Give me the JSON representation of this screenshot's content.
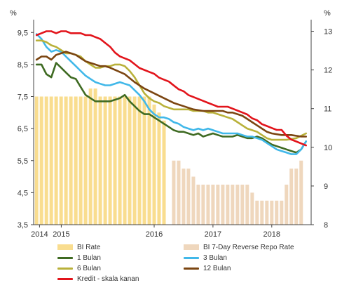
{
  "chart_data": {
    "type": "bar+line",
    "left_axis": {
      "unit": "%",
      "ylim": [
        3.5,
        9.9
      ],
      "ticks": [
        "3,5",
        "4,5",
        "5,5",
        "6,5",
        "7,5",
        "8,5",
        "9,5"
      ],
      "tick_values": [
        3.5,
        4.5,
        5.5,
        6.5,
        7.5,
        8.5,
        9.5
      ]
    },
    "right_axis": {
      "unit": "%",
      "ylim": [
        8,
        13.3
      ],
      "ticks": [
        "8",
        "9",
        "10",
        "11",
        "12",
        "13"
      ],
      "tick_values": [
        8,
        9,
        10,
        11,
        12,
        13
      ]
    },
    "x_axis": {
      "ticks": [
        "2014",
        "2015",
        "2016",
        "2017",
        "2018"
      ],
      "tick_values": [
        2014.05,
        2014.42,
        2016.0,
        2017.0,
        2018.0
      ]
    },
    "colors": {
      "bi_rate": "#f9dd8f",
      "bi_7day": "#efd7bd",
      "bulan_1": "#3f6b23",
      "bulan_3": "#41b8e9",
      "bulan_6": "#b9b13a",
      "bulan_12": "#7b4511",
      "kredit": "#e2141b"
    },
    "legend": [
      {
        "key": "bi_rate",
        "label": "BI Rate",
        "kind": "bar"
      },
      {
        "key": "bi_7day",
        "label": "BI 7-Day Reverse Repo Rate",
        "kind": "bar"
      },
      {
        "key": "bulan_1",
        "label": "1 Bulan",
        "kind": "line"
      },
      {
        "key": "bulan_3",
        "label": "3 Bulan",
        "kind": "line"
      },
      {
        "key": "bulan_6",
        "label": "6 Bulan",
        "kind": "line"
      },
      {
        "key": "bulan_12",
        "label": "12 Bulan",
        "kind": "line"
      },
      {
        "key": "kredit",
        "label": "Kredit - skala kanan",
        "kind": "line"
      }
    ],
    "bars_bi_rate": {
      "x": [
        2014.0,
        2014.083,
        2014.167,
        2014.25,
        2014.333,
        2014.417,
        2014.5,
        2014.583,
        2014.667,
        2014.75,
        2014.833,
        2014.917,
        2015.0,
        2015.083,
        2015.167,
        2015.25,
        2015.333,
        2015.417,
        2015.5,
        2015.583,
        2015.667,
        2015.75,
        2015.833,
        2015.917,
        2016.0,
        2016.083,
        2016.167
      ],
      "values": [
        7.5,
        7.5,
        7.5,
        7.5,
        7.5,
        7.5,
        7.5,
        7.5,
        7.5,
        7.5,
        7.5,
        7.75,
        7.75,
        7.5,
        7.5,
        7.5,
        7.5,
        7.5,
        7.5,
        7.5,
        7.5,
        7.5,
        7.5,
        7.5,
        7.25,
        7.0,
        6.75
      ]
    },
    "bars_bi_7day": {
      "x": [
        2016.333,
        2016.417,
        2016.5,
        2016.583,
        2016.667,
        2016.75,
        2016.833,
        2016.917,
        2017.0,
        2017.083,
        2017.167,
        2017.25,
        2017.333,
        2017.417,
        2017.5,
        2017.583,
        2017.667,
        2017.75,
        2017.833,
        2017.917,
        2018.0,
        2018.083,
        2018.167,
        2018.25,
        2018.333,
        2018.417,
        2018.5
      ],
      "values": [
        5.5,
        5.5,
        5.25,
        5.25,
        5.0,
        4.75,
        4.75,
        4.75,
        4.75,
        4.75,
        4.75,
        4.75,
        4.75,
        4.75,
        4.75,
        4.75,
        4.5,
        4.25,
        4.25,
        4.25,
        4.25,
        4.25,
        4.25,
        4.75,
        5.25,
        5.25,
        5.5
      ]
    },
    "lines": {
      "x": [
        2014.0,
        2014.083,
        2014.167,
        2014.25,
        2014.333,
        2014.417,
        2014.5,
        2014.583,
        2014.667,
        2014.75,
        2014.833,
        2014.917,
        2015.0,
        2015.083,
        2015.167,
        2015.25,
        2015.333,
        2015.417,
        2015.5,
        2015.583,
        2015.667,
        2015.75,
        2015.833,
        2015.917,
        2016.0,
        2016.083,
        2016.167,
        2016.25,
        2016.333,
        2016.417,
        2016.5,
        2016.583,
        2016.667,
        2016.75,
        2016.833,
        2016.917,
        2017.0,
        2017.083,
        2017.167,
        2017.25,
        2017.333,
        2017.417,
        2017.5,
        2017.583,
        2017.667,
        2017.75,
        2017.833,
        2017.917,
        2018.0,
        2018.083,
        2018.167,
        2018.25,
        2018.333,
        2018.417,
        2018.5,
        2018.583
      ],
      "bulan_1": [
        8.5,
        8.5,
        8.2,
        8.1,
        8.55,
        8.4,
        8.25,
        8.1,
        8.05,
        7.8,
        7.55,
        7.45,
        7.35,
        7.35,
        7.35,
        7.35,
        7.4,
        7.45,
        7.55,
        7.35,
        7.2,
        7.05,
        6.95,
        6.95,
        6.85,
        6.75,
        6.65,
        6.55,
        6.45,
        6.4,
        6.4,
        6.35,
        6.3,
        6.35,
        6.25,
        6.3,
        6.35,
        6.3,
        6.25,
        6.25,
        6.25,
        6.3,
        6.25,
        6.2,
        6.2,
        6.25,
        6.2,
        6.1,
        6.0,
        5.95,
        5.9,
        5.85,
        5.8,
        5.75,
        5.85,
        6.1
      ],
      "bulan_3": [
        9.45,
        9.3,
        9.05,
        8.9,
        8.95,
        8.9,
        8.75,
        8.6,
        8.45,
        8.3,
        8.15,
        8.05,
        7.95,
        7.9,
        7.85,
        7.85,
        7.9,
        7.95,
        7.9,
        7.85,
        7.7,
        7.55,
        7.35,
        7.1,
        6.95,
        6.85,
        6.85,
        6.8,
        6.7,
        6.65,
        6.55,
        6.5,
        6.45,
        6.5,
        6.45,
        6.5,
        6.45,
        6.4,
        6.35,
        6.35,
        6.35,
        6.35,
        6.3,
        6.25,
        6.25,
        6.2,
        6.15,
        6.05,
        5.95,
        5.85,
        5.8,
        5.75,
        5.7,
        5.7,
        5.85,
        6.1
      ],
      "bulan_6": [
        9.25,
        9.25,
        9.2,
        9.1,
        9.05,
        8.95,
        8.85,
        8.85,
        8.8,
        8.75,
        8.6,
        8.5,
        8.4,
        8.4,
        8.45,
        8.45,
        8.5,
        8.5,
        8.45,
        8.3,
        8.1,
        7.85,
        7.6,
        7.45,
        7.35,
        7.3,
        7.2,
        7.15,
        7.1,
        7.1,
        7.1,
        7.1,
        7.05,
        7.05,
        7.05,
        7.0,
        7.0,
        6.95,
        6.9,
        6.85,
        6.8,
        6.7,
        6.6,
        6.5,
        6.45,
        6.4,
        6.3,
        6.2,
        6.15,
        6.15,
        6.2,
        6.35
      ],
      "bulan_12": [
        8.65,
        8.75,
        8.75,
        8.65,
        8.8,
        8.85,
        8.9,
        8.85,
        8.8,
        8.7,
        8.6,
        8.55,
        8.5,
        8.45,
        8.45,
        8.4,
        8.2,
        7.95,
        7.75,
        7.6,
        7.45,
        7.3,
        7.2,
        7.1,
        7.05,
        7.05,
        7.05,
        7.0,
        7.0,
        6.95,
        6.9,
        6.8,
        6.7,
        6.6,
        6.5,
        6.4,
        6.35,
        6.3,
        6.3,
        6.25,
        6.25
      ],
      "kredit": [
        12.9,
        12.95,
        13.0,
        13.0,
        12.95,
        13.0,
        13.0,
        12.95,
        12.95,
        12.95,
        12.9,
        12.9,
        12.85,
        12.8,
        12.7,
        12.6,
        12.45,
        12.35,
        12.3,
        12.25,
        12.15,
        12.05,
        12.0,
        11.95,
        11.9,
        11.8,
        11.75,
        11.7,
        11.6,
        11.5,
        11.45,
        11.35,
        11.3,
        11.25,
        11.2,
        11.15,
        11.1,
        11.05,
        11.05,
        11.05,
        11.0,
        10.95,
        10.9,
        10.85,
        10.75,
        10.7,
        10.6,
        10.55,
        10.5,
        10.45,
        10.45,
        10.3,
        10.2,
        10.15,
        10.1,
        10.05
      ],
      "bulan_6_start": 2014.0,
      "bulan_12_start": 2014.0,
      "bulan_6_x": [
        2014.0,
        2014.083,
        2014.167,
        2014.25,
        2014.333,
        2014.417,
        2014.5,
        2014.583,
        2014.667,
        2014.75,
        2014.833,
        2014.917,
        2015.0,
        2015.083,
        2015.167,
        2015.25,
        2015.333,
        2015.417,
        2015.5,
        2015.583,
        2015.667,
        2015.75,
        2015.833,
        2015.917,
        2016.0,
        2016.083,
        2016.167,
        2016.25,
        2016.333,
        2016.417,
        2016.5,
        2016.583,
        2016.667,
        2016.75,
        2016.833,
        2016.917,
        2017.0,
        2017.083,
        2017.167,
        2017.25,
        2017.333,
        2017.417,
        2017.5,
        2017.583,
        2017.667,
        2017.75,
        2017.833,
        2017.917,
        2018.0,
        2018.25,
        2018.417,
        2018.583
      ],
      "bulan_12_x": [
        2014.0,
        2014.083,
        2014.167,
        2014.25,
        2014.333,
        2014.417,
        2014.5,
        2014.583,
        2014.667,
        2014.75,
        2014.833,
        2014.917,
        2015.0,
        2015.083,
        2015.167,
        2015.25,
        2015.5,
        2015.667,
        2015.833,
        2016.0,
        2016.167,
        2016.333,
        2016.5,
        2016.667,
        2016.833,
        2017.0,
        2017.167,
        2017.25,
        2017.333,
        2017.417,
        2017.5,
        2017.583,
        2017.667,
        2017.75,
        2017.833,
        2017.917,
        2018.0,
        2018.167,
        2018.333,
        2018.5,
        2018.583
      ]
    }
  }
}
